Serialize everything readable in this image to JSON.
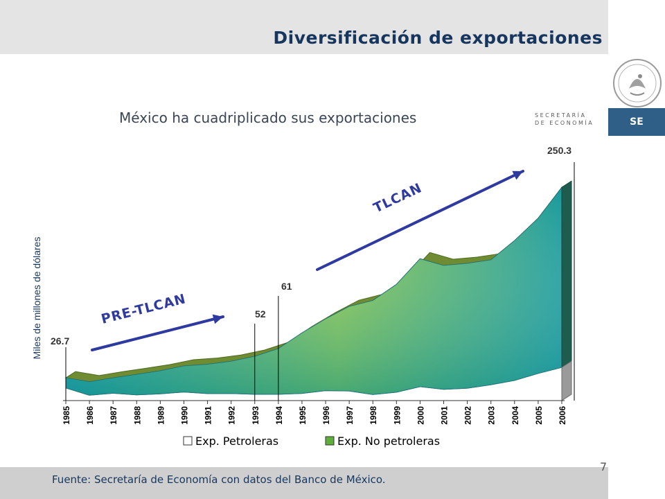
{
  "slide": {
    "title": "Diversificación de exportaciones",
    "subtitle": "México ha cuadriplicado sus exportaciones",
    "footer": "Fuente: Secretaría de Economía con datos del Banco de México.",
    "page_number": "7"
  },
  "branding": {
    "wordmark_line1": "SECRETARÍA",
    "wordmark_line2": "DE ECONOMÍA",
    "badge": "SE",
    "seal_icon": "mexico-coat-of-arms-icon"
  },
  "colors": {
    "title": "#17365d",
    "arrow": "#2f3aa0",
    "gradient_green": "#8cc63f",
    "gradient_teal": "#16999a",
    "top_band": "#6f8c32",
    "petroleum_fill": "#ffffff",
    "badge": "#2f5e86"
  },
  "chart_data": {
    "type": "area",
    "x": [
      "1985",
      "1986",
      "1987",
      "1988",
      "1989",
      "1990",
      "1991",
      "1992",
      "1993",
      "1994",
      "1995",
      "1996",
      "1997",
      "1998",
      "1999",
      "2000",
      "2001",
      "2002",
      "2003",
      "2004",
      "2005",
      "2006"
    ],
    "ylabel": "Miles de millones de dólares",
    "stacked": true,
    "series": [
      {
        "name": "Exp. Petroleras",
        "values": [
          14.8,
          6.3,
          8.6,
          6.7,
          7.9,
          10.1,
          8.2,
          8.3,
          7.4,
          7.4,
          8.4,
          11.7,
          11.3,
          7.1,
          9.9,
          16.4,
          13.2,
          14.5,
          18.6,
          23.7,
          31.9,
          39.0
        ]
      },
      {
        "name": "Exp. No petroleras",
        "values": [
          11.9,
          15.8,
          18.0,
          24.0,
          27.1,
          30.6,
          34.4,
          37.9,
          44.6,
          53.6,
          71.1,
          84.3,
          99.2,
          110.4,
          126.5,
          150.1,
          145.4,
          146.6,
          146.6,
          164.1,
          182.2,
          211.3
        ]
      }
    ],
    "totals_labeled": [
      {
        "x": "1985",
        "label": "26.7"
      },
      {
        "x": "1993",
        "label": "52"
      },
      {
        "x": "1994",
        "label": "61"
      },
      {
        "x": "2006",
        "label": "250.3"
      }
    ],
    "annotations": [
      {
        "text": "PRE-TLCAN"
      },
      {
        "text": "TLCAN"
      }
    ],
    "ylim": [
      0,
      260
    ],
    "legend": "bottom",
    "grid": false
  }
}
